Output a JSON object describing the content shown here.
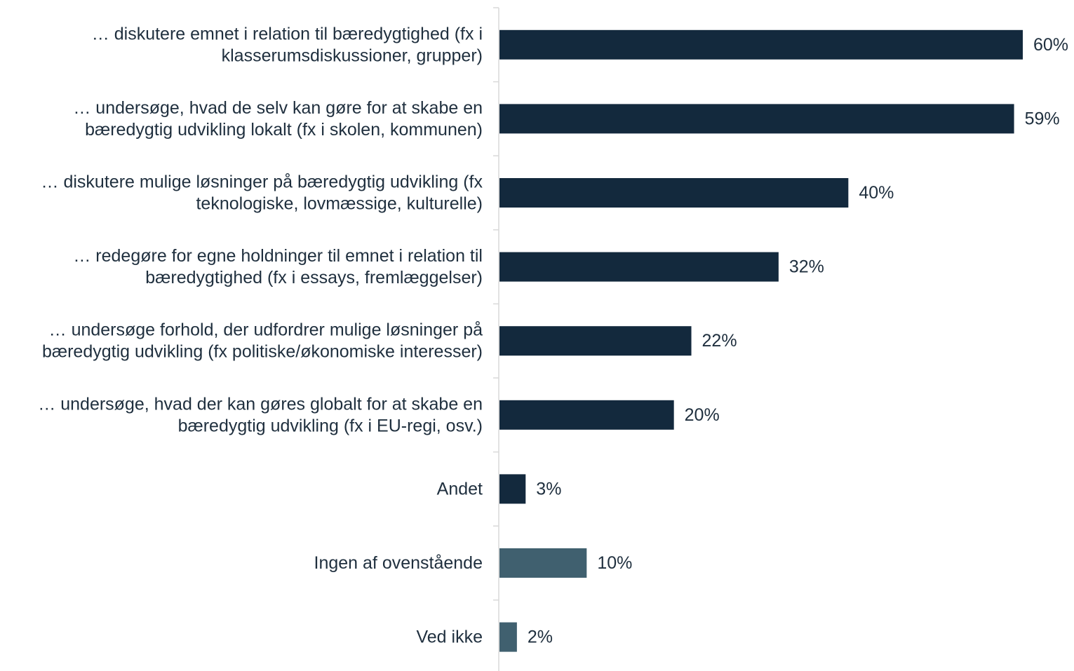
{
  "chart_data": {
    "type": "bar",
    "orientation": "horizontal",
    "categories": [
      [
        "… diskutere emnet i relation til bæredygtighed (fx i",
        "klasserumsdiskussioner, grupper)"
      ],
      [
        "… undersøge, hvad de selv kan gøre for at skabe en",
        "bæredygtig udvikling lokalt (fx i skolen, kommunen)"
      ],
      [
        "… diskutere mulige løsninger på bæredygtig udvikling (fx",
        "teknologiske, lovmæssige, kulturelle)"
      ],
      [
        "… redegøre for egne holdninger til emnet i relation til",
        "bæredygtighed (fx i essays, fremlæggelser)"
      ],
      [
        "… undersøge forhold, der udfordrer mulige løsninger på",
        "bæredygtig udvikling (fx politiske/økonomiske interesser)"
      ],
      [
        "… undersøge, hvad der kan gøres globalt for at skabe en",
        "bæredygtig udvikling (fx i EU-regi, osv.)"
      ],
      [
        "Andet"
      ],
      [
        "Ingen af ovenstående"
      ],
      [
        "Ved ikke"
      ]
    ],
    "values": [
      60,
      59,
      40,
      32,
      22,
      20,
      3,
      10,
      2
    ],
    "value_labels": [
      "60%",
      "59%",
      "40%",
      "32%",
      "22%",
      "20%",
      "3%",
      "10%",
      "2%"
    ],
    "unit": "%",
    "xlim": [
      0,
      60
    ],
    "grid": false,
    "legend": "none",
    "title": "",
    "xlabel": "",
    "ylabel": "",
    "colors": {
      "primary": "#13293d",
      "secondary": "#40606f",
      "axis": "#d9d9d9",
      "text": "#1f2f3e"
    },
    "bar_colors": [
      "primary",
      "primary",
      "primary",
      "primary",
      "primary",
      "primary",
      "primary",
      "secondary",
      "secondary"
    ]
  }
}
